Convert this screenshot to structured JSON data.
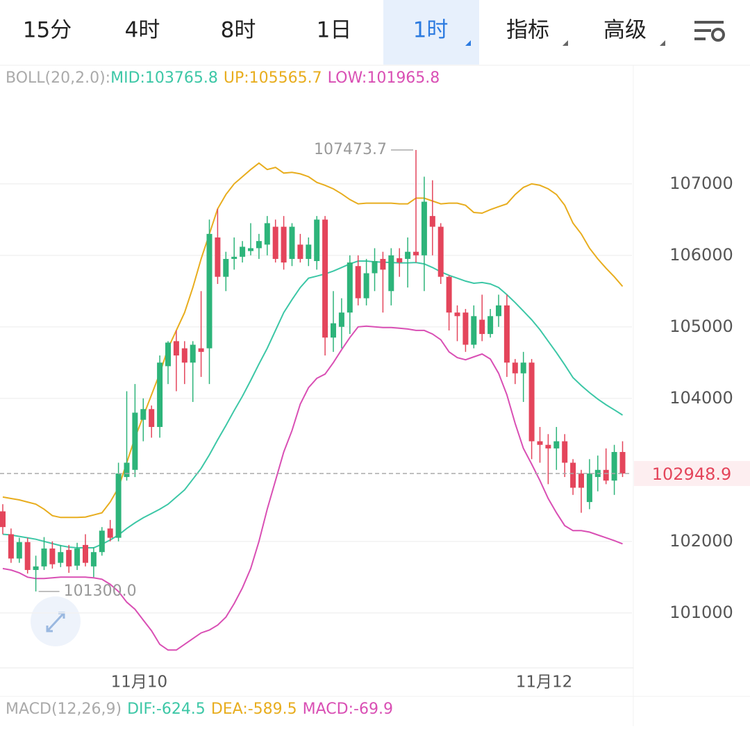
{
  "tabs": [
    "15分",
    "4时",
    "8时",
    "1日",
    "1时",
    "指标",
    "高级"
  ],
  "active_tab": 4,
  "chart_data": {
    "type": "candlestick",
    "indicator": "BOLL(20,2.0):",
    "up_color": "#2db47a",
    "down_color": "#e4455b",
    "categories": [
      null,
      null,
      null,
      null,
      null,
      null,
      null,
      null,
      null,
      null,
      null,
      null,
      null,
      null,
      null,
      null,
      "11月10",
      null,
      null,
      null,
      null,
      null,
      null,
      null,
      null,
      null,
      null,
      null,
      null,
      null,
      null,
      null,
      null,
      null,
      null,
      null,
      null,
      null,
      null,
      null,
      null,
      null,
      null,
      null,
      null,
      null,
      null,
      null,
      null,
      null,
      null,
      null,
      null,
      null,
      null,
      null,
      null,
      null,
      null,
      null,
      null,
      null,
      null,
      null,
      null,
      "11月12",
      null,
      null,
      null,
      null,
      null,
      null,
      null,
      null,
      null,
      null
    ],
    "candles": {
      "open": [
        102420,
        102100,
        101760,
        101990,
        101600,
        101650,
        101900,
        101700,
        101880,
        101660,
        101950,
        101650,
        101850,
        102180,
        102050,
        102900,
        103000,
        103700,
        103850,
        103600,
        104450,
        104800,
        104700,
        104500,
        104700,
        104700,
        106250,
        105700,
        105950,
        105980,
        106060,
        106100,
        106150,
        106400,
        106400,
        105950,
        106150,
        105950,
        105920,
        106500,
        104850,
        105000,
        105200,
        105850,
        105400,
        105750,
        105950,
        105500,
        105960,
        105950,
        106050,
        106000,
        106550,
        106400,
        105700,
        105200,
        105200,
        104750,
        105100,
        104900,
        105150,
        105300,
        104500,
        104350,
        104500,
        103400,
        103350,
        103300,
        103400,
        103100,
        102950,
        102550,
        102900,
        103000,
        102850,
        103250
      ],
      "high": [
        102520,
        102180,
        102050,
        102050,
        101800,
        102060,
        102000,
        101950,
        101950,
        101980,
        102100,
        101920,
        102200,
        102300,
        103100,
        104100,
        104200,
        104000,
        103900,
        104600,
        104800,
        104950,
        104800,
        104800,
        105500,
        106500,
        106650,
        106050,
        106250,
        106200,
        106450,
        106300,
        106550,
        106500,
        106550,
        106450,
        106300,
        106250,
        106550,
        106550,
        105500,
        105400,
        106000,
        106000,
        105950,
        106100,
        106050,
        106100,
        106100,
        106250,
        107473.7,
        107100,
        107050,
        106450,
        105720,
        105300,
        105250,
        105300,
        105450,
        105250,
        105450,
        105450,
        104550,
        104650,
        104550,
        103600,
        103500,
        103600,
        103500,
        103150,
        103000,
        103150,
        103200,
        103300,
        103350,
        103400
      ],
      "low": [
        102100,
        101700,
        101700,
        101550,
        101300,
        101600,
        101620,
        101640,
        101560,
        101600,
        101650,
        101500,
        101800,
        102000,
        102000,
        102850,
        102900,
        103400,
        103450,
        103450,
        104200,
        104100,
        104200,
        103950,
        104300,
        104200,
        105600,
        105500,
        105800,
        105900,
        106000,
        105950,
        106000,
        105900,
        105800,
        105850,
        105900,
        105850,
        105800,
        104600,
        104650,
        104700,
        104900,
        105300,
        105300,
        105500,
        105200,
        105300,
        105700,
        105550,
        105900,
        105500,
        106000,
        105600,
        104950,
        104800,
        104650,
        104700,
        104800,
        104850,
        105000,
        104300,
        104200,
        103950,
        103150,
        103100,
        102800,
        103000,
        102900,
        102650,
        102400,
        102450,
        102700,
        102800,
        102650,
        102900
      ],
      "close": [
        102200,
        101760,
        101990,
        101600,
        101650,
        101900,
        101680,
        101850,
        101650,
        101900,
        101700,
        101850,
        102150,
        102050,
        102950,
        103100,
        103800,
        103850,
        103600,
        104500,
        104780,
        104600,
        104500,
        104750,
        104650,
        106300,
        105700,
        105950,
        105980,
        106120,
        106100,
        106200,
        106450,
        105950,
        105900,
        106400,
        105950,
        106150,
        106500,
        104850,
        105050,
        105200,
        105900,
        105400,
        105750,
        105920,
        105800,
        106000,
        105900,
        106050,
        106000,
        106750,
        106400,
        105700,
        105200,
        105150,
        104750,
        105150,
        104900,
        105150,
        105300,
        104500,
        104350,
        104500,
        103400,
        103350,
        103300,
        103400,
        103100,
        102750,
        102750,
        102950,
        103000,
        102850,
        103250,
        102948.9
      ]
    },
    "series": [
      {
        "name": "MID:103765.8",
        "color": "#3cc7a6",
        "values": [
          102100,
          102090,
          102070,
          102050,
          102030,
          102000,
          101970,
          101940,
          101920,
          101910,
          101910,
          101910,
          101960,
          102020,
          102090,
          102180,
          102260,
          102330,
          102390,
          102450,
          102520,
          102620,
          102720,
          102870,
          103020,
          103210,
          103420,
          103620,
          103830,
          104030,
          104250,
          104480,
          104700,
          104950,
          105200,
          105380,
          105550,
          105680,
          105710,
          105740,
          105780,
          105830,
          105880,
          105920,
          105920,
          105910,
          105905,
          105900,
          105895,
          105895,
          105900,
          105880,
          105830,
          105770,
          105720,
          105680,
          105640,
          105610,
          105620,
          105600,
          105550,
          105450,
          105340,
          105220,
          105100,
          104960,
          104800,
          104640,
          104470,
          104290,
          104180,
          104080,
          103990,
          103910,
          103840,
          103766
        ]
      },
      {
        "name": "UP:105565.7",
        "color": "#e8ad1e",
        "values": [
          102620,
          102600,
          102580,
          102550,
          102520,
          102450,
          102360,
          102335,
          102335,
          102335,
          102340,
          102370,
          102400,
          102550,
          102750,
          103100,
          103450,
          103750,
          104050,
          104350,
          104700,
          104950,
          105200,
          105550,
          105950,
          106300,
          106650,
          106850,
          107000,
          107100,
          107200,
          107290,
          107200,
          107230,
          107150,
          107160,
          107140,
          107100,
          107020,
          106980,
          106930,
          106860,
          106780,
          106720,
          106730,
          106730,
          106730,
          106730,
          106720,
          106720,
          106800,
          106800,
          106760,
          106720,
          106730,
          106730,
          106700,
          106600,
          106590,
          106640,
          106680,
          106720,
          106850,
          106950,
          107000,
          106980,
          106930,
          106850,
          106700,
          106450,
          106300,
          106100,
          105950,
          105820,
          105700,
          105566
        ]
      },
      {
        "name": "LOW:101965.8",
        "color": "#d94fb4",
        "values": [
          101620,
          101600,
          101560,
          101500,
          101480,
          101480,
          101490,
          101500,
          101500,
          101500,
          101500,
          101490,
          101470,
          101400,
          101300,
          101150,
          101050,
          100900,
          100750,
          100560,
          100480,
          100480,
          100560,
          100640,
          100720,
          100760,
          100830,
          100940,
          101130,
          101350,
          101620,
          102000,
          102450,
          102850,
          103250,
          103550,
          103920,
          104150,
          104280,
          104340,
          104500,
          104680,
          104850,
          105000,
          105010,
          105000,
          104990,
          104990,
          104980,
          104970,
          104950,
          104950,
          104900,
          104820,
          104650,
          104570,
          104540,
          104580,
          104620,
          104550,
          104350,
          104050,
          103650,
          103300,
          103080,
          102850,
          102600,
          102400,
          102220,
          102150,
          102150,
          102130,
          102090,
          102050,
          102010,
          101966
        ]
      }
    ],
    "annotations": [
      "107473.7",
      "101300.0"
    ],
    "ylim": [
      100250,
      108600
    ],
    "yticks": [
      101000,
      102000,
      104000,
      105000,
      106000,
      107000
    ],
    "grid": true,
    "sub_indicator": "MACD(12,26,9)",
    "sub_legend": [
      {
        "text": "DIF:-624.5",
        "color": "#3cc7a6"
      },
      {
        "text": "DEA:-589.5",
        "color": "#e8ad1e"
      },
      {
        "text": "MACD:-69.9",
        "color": "#d94fb4"
      }
    ]
  }
}
